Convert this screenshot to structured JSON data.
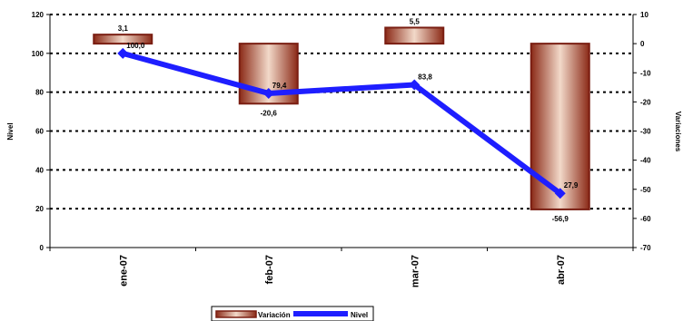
{
  "chart_data": {
    "type": "bar+line",
    "categories": [
      "ene-07",
      "feb-07",
      "mar-07",
      "abr-07"
    ],
    "series": [
      {
        "name": "Variación",
        "type": "bar",
        "axis": "right",
        "values": [
          3.1,
          -20.6,
          5.5,
          -56.9
        ],
        "labels": [
          "3,1",
          "-20,6",
          "5,5",
          "-56,9"
        ]
      },
      {
        "name": "Nivel",
        "type": "line",
        "axis": "left",
        "values": [
          100.0,
          79.4,
          83.8,
          27.9
        ],
        "labels": [
          "100,0",
          "79,4",
          "83,8",
          "27,9"
        ]
      }
    ],
    "ylabel": "Nivel",
    "y2label": "Variaciones",
    "ylim": [
      0,
      120
    ],
    "y2lim": [
      -70,
      10
    ],
    "yticks": [
      0,
      20,
      40,
      60,
      80,
      100,
      120
    ],
    "y2ticks": [
      10,
      0,
      -10,
      -20,
      -30,
      -40,
      -50,
      -60,
      -70
    ],
    "grid": "dotted horizontal",
    "legend": "bottom-center",
    "colors": {
      "bar_edge": "#7a1e12",
      "bar_dark": "#8b2a17",
      "bar_light": "#f2d9c9",
      "line": "#1e1eff",
      "grid": "#000000"
    }
  }
}
